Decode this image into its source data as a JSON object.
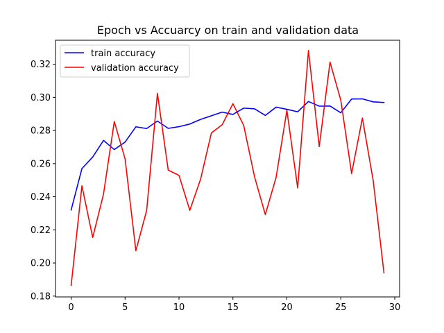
{
  "chart_data": {
    "type": "line",
    "title": "Epoch vs Accuarcy on train and validation data",
    "xlabel": "",
    "ylabel": "",
    "xlim": [
      -1.45,
      30.45
    ],
    "ylim": [
      0.1795,
      0.3345
    ],
    "xticks": [
      0,
      5,
      10,
      15,
      20,
      25,
      30
    ],
    "yticks": [
      0.18,
      0.2,
      0.22,
      0.24,
      0.26,
      0.28,
      0.3,
      0.32
    ],
    "ytick_labels": [
      "0.18",
      "0.20",
      "0.22",
      "0.24",
      "0.26",
      "0.28",
      "0.30",
      "0.32"
    ],
    "grid": false,
    "legend_position": "top-left",
    "x": [
      0,
      1,
      2,
      3,
      4,
      5,
      6,
      7,
      8,
      9,
      10,
      11,
      12,
      13,
      14,
      15,
      16,
      17,
      18,
      19,
      20,
      21,
      22,
      23,
      24,
      25,
      26,
      27,
      28,
      29
    ],
    "series": [
      {
        "name": "train accuracy",
        "color": "#0000ff",
        "values": [
          0.232,
          0.257,
          0.264,
          0.274,
          0.2685,
          0.273,
          0.2822,
          0.2812,
          0.2857,
          0.2813,
          0.2823,
          0.2839,
          0.2867,
          0.2889,
          0.2911,
          0.2897,
          0.2935,
          0.2931,
          0.2891,
          0.2941,
          0.2928,
          0.2913,
          0.2975,
          0.2947,
          0.2948,
          0.2907,
          0.299,
          0.2991,
          0.2973,
          0.2969
        ]
      },
      {
        "name": "validation accuracy",
        "color": "#ff0000",
        "values": [
          0.1865,
          0.2466,
          0.2154,
          0.2416,
          0.2854,
          0.2629,
          0.2074,
          0.2317,
          0.3024,
          0.2561,
          0.2529,
          0.2318,
          0.2506,
          0.2785,
          0.2835,
          0.2962,
          0.283,
          0.2521,
          0.2292,
          0.2517,
          0.2922,
          0.2453,
          0.3283,
          0.2703,
          0.3213,
          0.2982,
          0.254,
          0.2875,
          0.2498,
          0.194
        ]
      }
    ]
  }
}
